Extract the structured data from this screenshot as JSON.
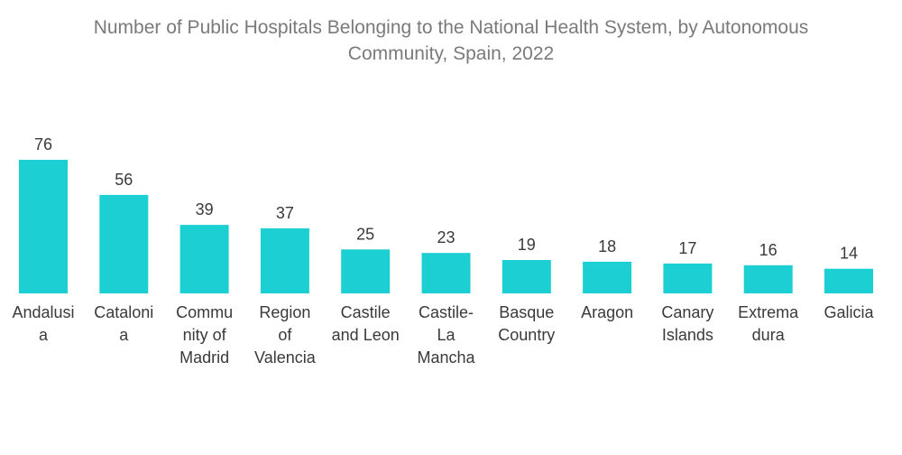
{
  "chart_data": {
    "type": "bar",
    "title_lines": [
      "Number of Public Hospitals Belonging to the National Health System, by Autonomous",
      "Community, Spain, 2022"
    ],
    "xlabel": "",
    "ylabel": "",
    "ylim": [
      0,
      76
    ],
    "grid": false,
    "legend": "none",
    "bar_color": "#1ccfd3",
    "categories": [
      [
        "Andalusi",
        "a"
      ],
      [
        "Cataloni",
        "a"
      ],
      [
        "Commu",
        "nity of",
        "Madrid"
      ],
      [
        "Region",
        "of",
        "Valencia"
      ],
      [
        "Castile",
        "and Leon"
      ],
      [
        "Castile-",
        "La",
        "Mancha"
      ],
      [
        "Basque",
        "Country"
      ],
      [
        "Aragon"
      ],
      [
        "Canary",
        "Islands"
      ],
      [
        "Extrema",
        "dura"
      ],
      [
        "Galicia"
      ]
    ],
    "values": [
      76,
      56,
      39,
      37,
      25,
      23,
      19,
      18,
      17,
      16,
      14
    ]
  }
}
